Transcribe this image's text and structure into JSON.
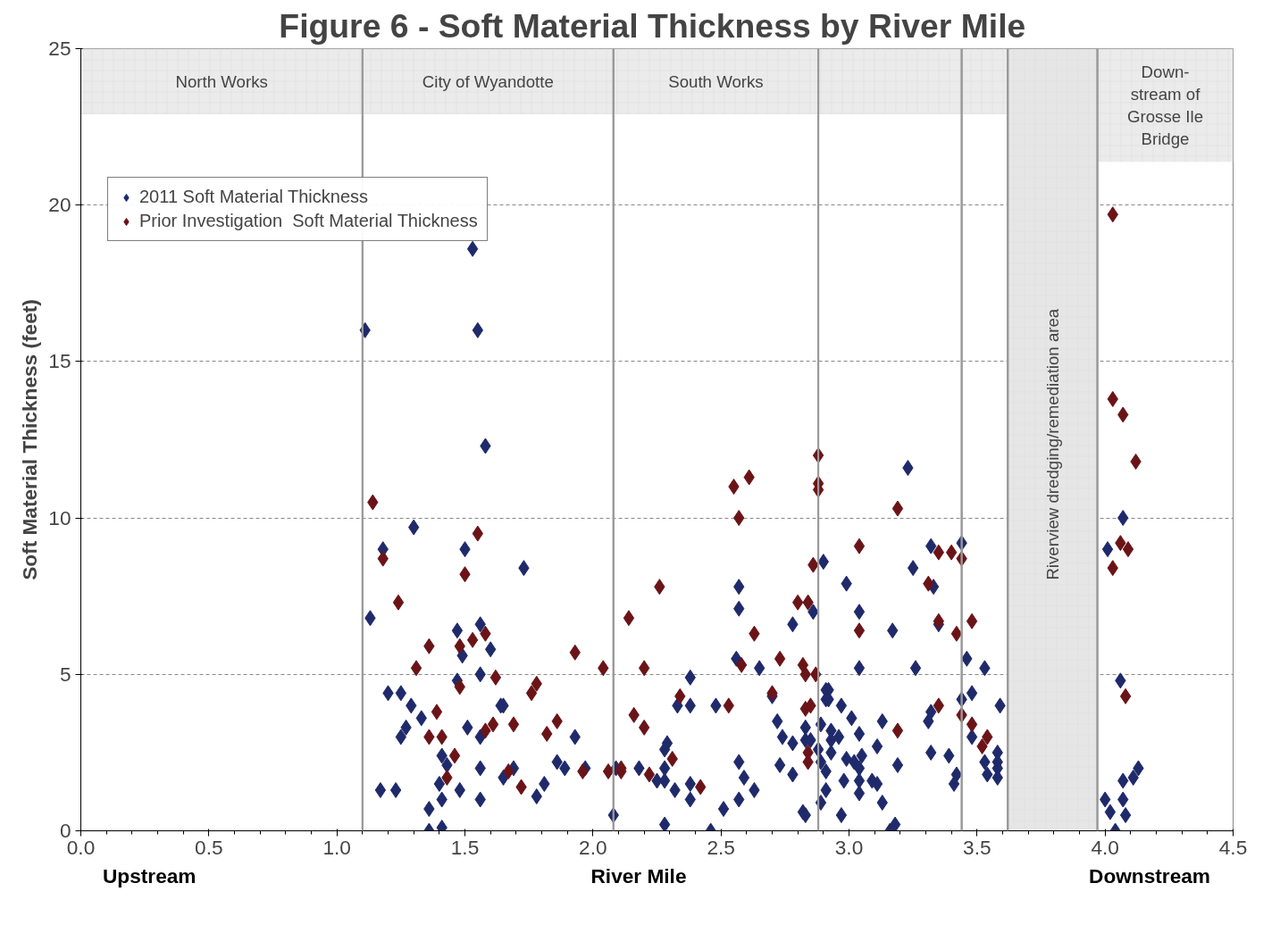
{
  "chart_data": {
    "type": "scatter",
    "title": "Figure  6 - Soft Material Thickness by River Mile",
    "xlabel": "River Mile",
    "ylabel": "Soft Material Thickness (feet)",
    "annotations": [
      "Upstream",
      "Downstream"
    ],
    "xlim": [
      0,
      4.5
    ],
    "ylim": [
      0,
      25
    ],
    "xticks": [
      {
        "value": 0,
        "label": "0.0"
      },
      {
        "value": 0.5,
        "label": "0.5"
      },
      {
        "value": 1,
        "label": "1.0"
      },
      {
        "value": 1.5,
        "label": "1.5"
      },
      {
        "value": 2,
        "label": "2.0"
      },
      {
        "value": 2.5,
        "label": "2.5"
      },
      {
        "value": 3,
        "label": "3.0"
      },
      {
        "value": 3.5,
        "label": "3.5"
      },
      {
        "value": 4,
        "label": "4.0"
      },
      {
        "value": 4.5,
        "label": "4.5"
      }
    ],
    "yticks": [
      0,
      5,
      10,
      15,
      20,
      25
    ],
    "grid": "y",
    "legend": "top left",
    "marker": "diamond",
    "bands": [
      {
        "axis": "x",
        "from": 0,
        "to": 1.1,
        "label": "North Works"
      },
      {
        "axis": "x",
        "from": 1.1,
        "to": 2.08,
        "label": "City of Wyandotte"
      },
      {
        "axis": "x",
        "from": 2.08,
        "to": 2.88,
        "label": "South Works"
      },
      {
        "axis": "x",
        "from": 2.88,
        "to": 3.44,
        "label": null
      },
      {
        "axis": "x",
        "from": 3.44,
        "to": 3.62,
        "label": null
      },
      {
        "axis": "x",
        "from": 3.62,
        "to": 3.97,
        "label": "Riverview  dredging/remediation  area",
        "color": "#e6e6e6"
      },
      {
        "axis": "x",
        "from": 3.97,
        "to": 4.5,
        "label": "Down-\nstream of\nGrosse Ile\nBridge"
      }
    ],
    "series": [
      {
        "name": "2011 Soft Material Thickness",
        "color": "#1f2a6b",
        "x": [
          1.11,
          1.13,
          1.18,
          1.17,
          1.2,
          1.23,
          1.25,
          1.25,
          1.27,
          1.29,
          1.3,
          1.33,
          1.36,
          1.36,
          1.4,
          1.41,
          1.41,
          1.41,
          1.43,
          1.47,
          1.47,
          1.48,
          1.49,
          1.5,
          1.51,
          1.53,
          1.55,
          1.56,
          1.56,
          1.56,
          1.56,
          1.56,
          1.58,
          1.6,
          1.64,
          1.65,
          1.65,
          1.69,
          1.73,
          1.78,
          1.81,
          1.86,
          1.89,
          1.93,
          1.97,
          2.08,
          2.09,
          2.38,
          2.33,
          2.38,
          2.48,
          2.29,
          2.28,
          2.28,
          2.25,
          2.28,
          2.18,
          2.32,
          2.38,
          2.38,
          2.28,
          2.46,
          2.51,
          2.57,
          2.57,
          2.59,
          2.63,
          2.57,
          2.57,
          2.56,
          2.65,
          2.7,
          2.72,
          2.74,
          2.78,
          2.73,
          2.78,
          2.78,
          2.86,
          2.83,
          2.89,
          2.83,
          2.85,
          2.88,
          2.89,
          2.82,
          2.83,
          2.89,
          2.9,
          2.91,
          2.91,
          3.23,
          2.99,
          3.04,
          3.04,
          3.17,
          3.25,
          3.26,
          3.32,
          3.33,
          3.35,
          3.44,
          3.46,
          3.53,
          2.92,
          2.92,
          2.97,
          3.01,
          3.13,
          3.04,
          2.93,
          2.93,
          2.96,
          2.93,
          2.99,
          3.02,
          3.05,
          3.04,
          3.11,
          3.19,
          2.98,
          3.04,
          3.04,
          3.09,
          3.11,
          2.91,
          2.91,
          2.97,
          3.13,
          3.16,
          3.18,
          3.32,
          3.39,
          3.32,
          3.31,
          3.42,
          3.41,
          3.44,
          3.48,
          3.48,
          3.53,
          3.54,
          3.58,
          3.58,
          3.58,
          3.58,
          3.59,
          4.07,
          4.01,
          4.06,
          4.13,
          4.11,
          4.07,
          4.0,
          4.07,
          4.02,
          4.08,
          4.04
        ],
        "values": [
          16.0,
          6.8,
          9.0,
          1.3,
          4.4,
          1.3,
          4.4,
          3.0,
          3.3,
          4.0,
          9.7,
          3.6,
          0.7,
          0.0,
          1.5,
          2.4,
          0.1,
          1.0,
          2.1,
          4.8,
          6.4,
          1.3,
          5.6,
          9.0,
          3.3,
          18.6,
          16.0,
          6.6,
          5.0,
          3.0,
          2.0,
          1.0,
          12.3,
          5.8,
          4.0,
          4.0,
          1.7,
          2.0,
          8.4,
          1.1,
          1.5,
          2.2,
          2.0,
          3.0,
          2.0,
          0.5,
          2.0,
          4.9,
          4.0,
          4.0,
          4.0,
          2.8,
          2.6,
          2.0,
          1.6,
          1.6,
          2.0,
          1.3,
          1.5,
          1.0,
          0.2,
          0.0,
          0.7,
          1.0,
          2.2,
          1.7,
          1.3,
          7.8,
          7.1,
          5.5,
          5.2,
          4.3,
          3.5,
          3.0,
          2.8,
          2.1,
          1.8,
          6.6,
          7.0,
          3.3,
          3.4,
          2.9,
          2.9,
          2.6,
          2.2,
          0.6,
          0.5,
          0.9,
          8.6,
          4.5,
          4.2,
          11.6,
          7.9,
          7.0,
          5.2,
          6.4,
          8.4,
          5.2,
          9.1,
          7.8,
          6.6,
          9.2,
          5.5,
          5.2,
          4.5,
          4.2,
          4.0,
          3.6,
          3.5,
          3.1,
          3.2,
          2.9,
          3.0,
          2.5,
          2.3,
          2.2,
          2.4,
          2.0,
          2.7,
          2.1,
          1.6,
          1.6,
          1.2,
          1.6,
          1.5,
          1.9,
          1.3,
          0.5,
          0.9,
          0.0,
          0.2,
          2.5,
          2.4,
          3.8,
          3.5,
          1.8,
          1.5,
          4.2,
          4.4,
          3.0,
          2.2,
          1.8,
          2.5,
          2.2,
          2.0,
          1.7,
          4.0,
          10.0,
          9.0,
          4.8,
          2.0,
          1.7,
          1.6,
          1.0,
          1.0,
          0.6,
          0.5,
          0.0
        ]
      },
      {
        "name": "Prior Investigation  Soft Material Thickness",
        "color": "#6b1418",
        "x": [
          1.14,
          1.18,
          1.24,
          1.31,
          1.36,
          1.48,
          1.5,
          1.55,
          1.53,
          1.58,
          1.48,
          1.62,
          1.78,
          1.76,
          1.93,
          2.04,
          1.39,
          1.36,
          1.41,
          1.58,
          1.61,
          1.69,
          1.86,
          1.82,
          1.46,
          1.43,
          1.67,
          1.72,
          1.96,
          2.06,
          2.11,
          2.88,
          2.61,
          2.55,
          2.88,
          2.88,
          2.57,
          2.86,
          2.26,
          2.14,
          2.63,
          2.8,
          2.84,
          2.73,
          2.58,
          2.82,
          2.83,
          2.87,
          2.2,
          2.34,
          2.7,
          2.53,
          2.83,
          2.85,
          2.16,
          2.2,
          2.31,
          2.84,
          2.84,
          2.11,
          2.22,
          2.42,
          3.19,
          3.04,
          3.35,
          3.4,
          3.44,
          3.31,
          3.04,
          3.35,
          3.42,
          3.48,
          3.35,
          3.44,
          3.48,
          3.54,
          3.52,
          3.19,
          4.03,
          4.03,
          4.07,
          4.12,
          4.06,
          4.09,
          4.03,
          4.08
        ],
        "values": [
          10.5,
          8.7,
          7.3,
          5.2,
          5.9,
          5.9,
          8.2,
          9.5,
          6.1,
          6.3,
          4.6,
          4.9,
          4.7,
          4.4,
          5.7,
          5.2,
          3.8,
          3.0,
          3.0,
          3.2,
          3.4,
          3.4,
          3.5,
          3.1,
          2.4,
          1.7,
          1.9,
          1.4,
          1.9,
          1.9,
          1.9,
          12.0,
          11.3,
          11.0,
          11.1,
          10.9,
          10.0,
          8.5,
          7.8,
          6.8,
          6.3,
          7.3,
          7.3,
          5.5,
          5.3,
          5.3,
          5.0,
          5.0,
          5.2,
          4.3,
          4.4,
          4.0,
          3.9,
          4.0,
          3.7,
          3.3,
          2.3,
          2.5,
          2.2,
          2.0,
          1.8,
          1.4,
          10.3,
          9.1,
          8.9,
          8.9,
          8.7,
          7.9,
          6.4,
          6.7,
          6.3,
          6.7,
          4.0,
          3.7,
          3.4,
          3.0,
          2.7,
          3.2,
          19.7,
          13.8,
          13.3,
          11.8,
          9.2,
          9.0,
          8.4,
          4.3
        ]
      }
    ]
  }
}
